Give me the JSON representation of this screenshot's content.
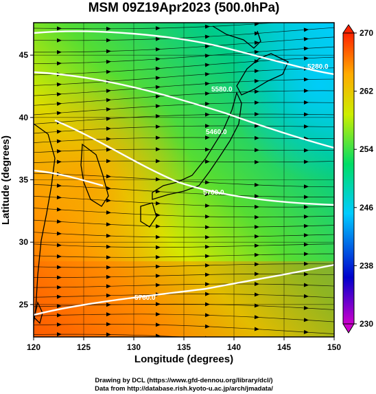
{
  "title": "MSM 09Z19Apr2023 (500.0hPa)",
  "x_axis": {
    "label": "Longitude (degrees)",
    "range": [
      120,
      150
    ],
    "ticks": [
      120,
      125,
      130,
      135,
      140,
      145,
      150
    ]
  },
  "y_axis": {
    "label": "Latitude  (degrees)",
    "range": [
      22.4,
      47.6
    ],
    "ticks": [
      25,
      30,
      35,
      40,
      45
    ]
  },
  "colorbar": {
    "range": [
      230,
      270
    ],
    "ticks": [
      230,
      238,
      246,
      254,
      262,
      270
    ],
    "colors": [
      "#cc00cc",
      "#0000cc",
      "#00ccff",
      "#00dd66",
      "#ccee00",
      "#ffaa00",
      "#ff2200"
    ]
  },
  "contour_labels": [
    "5700.0",
    "5760.0",
    "5580.0",
    "5460.0",
    "5280.0"
  ],
  "credits": {
    "line1": "Drawing by DCL (https://www.gfd-dennou.org/library/dcl/)",
    "line2": "Data from http://database.rish.kyoto-u.ac.jp/arch/jmadata/"
  }
}
